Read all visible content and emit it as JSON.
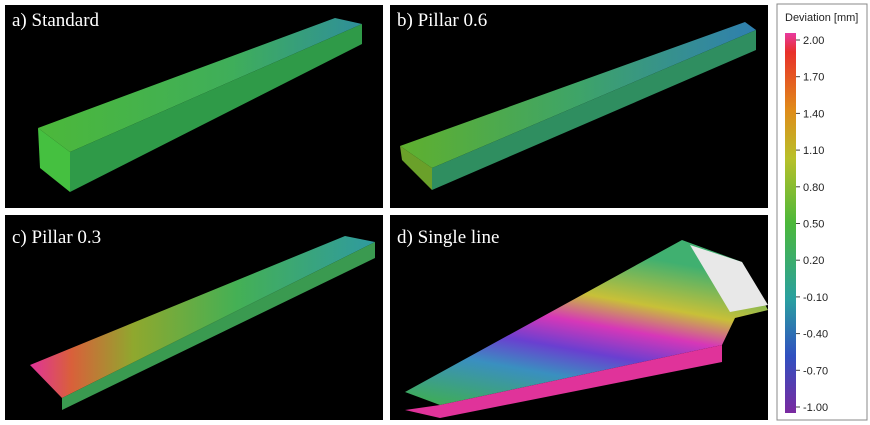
{
  "panels": [
    {
      "label": "a) Standard"
    },
    {
      "label": "b) Pillar 0.6"
    },
    {
      "label": "c) Pillar 0.3"
    },
    {
      "label": "d) Single line"
    }
  ],
  "colorbar": {
    "title": "Deviation [mm]",
    "ticks": [
      {
        "value": 2,
        "label": "2.00"
      },
      {
        "value": 1.7,
        "label": "1.70"
      },
      {
        "value": 1.4,
        "label": "1.40"
      },
      {
        "value": 1.1,
        "label": "1.10"
      },
      {
        "value": 0.8,
        "label": "0.80"
      },
      {
        "value": 0.5,
        "label": "0.50"
      },
      {
        "value": 0.2,
        "label": "0.20"
      },
      {
        "value": -0.1,
        "label": "-0.10"
      },
      {
        "value": -0.4,
        "label": "-0.40"
      },
      {
        "value": -0.7,
        "label": "-0.70"
      },
      {
        "value": -1,
        "label": "-1.00"
      }
    ]
  }
}
